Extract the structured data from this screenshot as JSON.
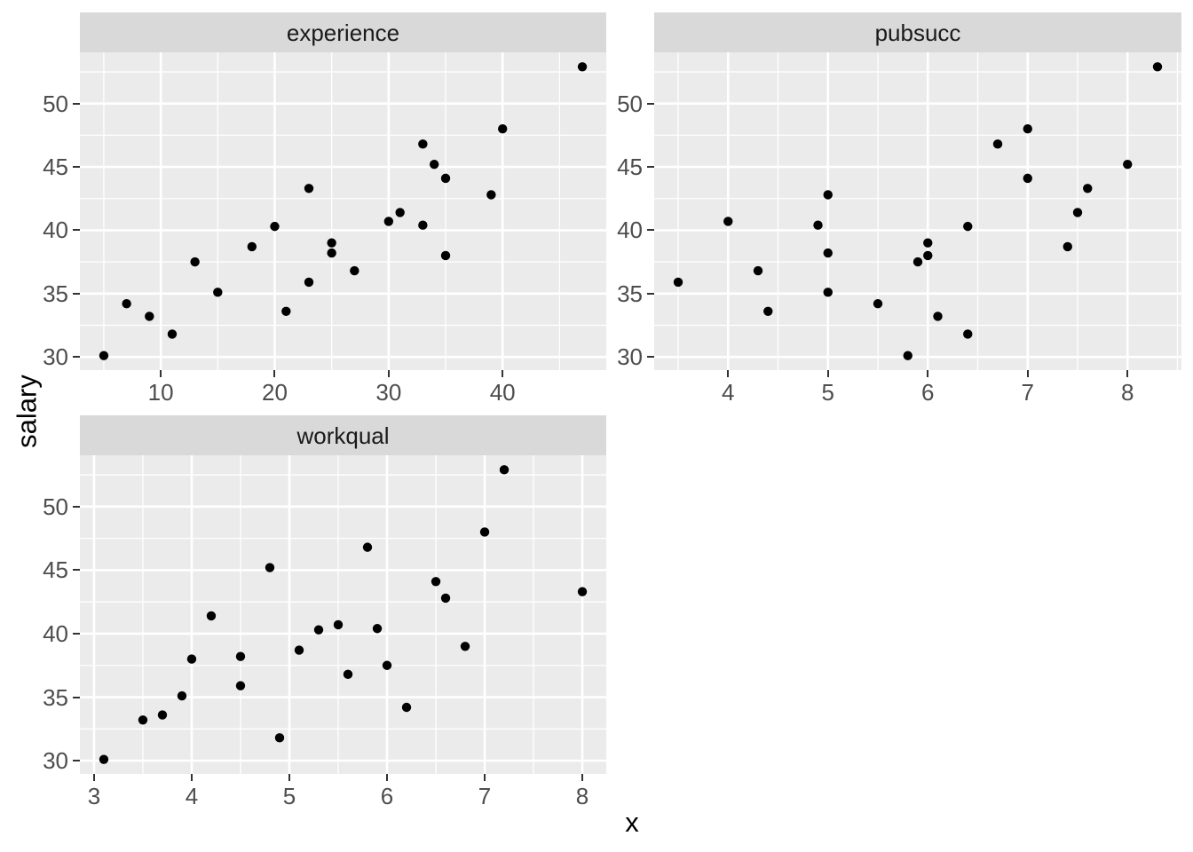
{
  "figure": {
    "x_axis_title": "x",
    "y_axis_title": "salary",
    "background": "#FFFFFF",
    "panel_bg": "#EBEBEB",
    "strip_bg": "#D9D9D9",
    "grid_color": "#FFFFFF",
    "tick_mark_color": "#333333",
    "tick_label_color": "#4D4D4D",
    "strip_text_color": "#1A1A1A",
    "axis_title_color": "#000000",
    "point_color": "#000000",
    "legend": "none"
  },
  "chart_data": [
    {
      "type": "scatter",
      "facet": "experience",
      "xlabel": "x",
      "ylabel": "salary",
      "x": [
        5,
        7,
        9,
        11,
        13,
        15,
        18,
        20,
        21,
        23,
        23,
        25,
        25,
        27,
        30,
        31,
        33,
        33,
        34,
        35,
        35,
        39,
        40,
        47
      ],
      "y": [
        30.1,
        34.2,
        33.2,
        31.8,
        37.5,
        35.1,
        38.7,
        40.3,
        33.6,
        35.9,
        43.3,
        39.0,
        38.2,
        36.8,
        40.7,
        41.4,
        46.8,
        40.4,
        45.2,
        44.1,
        38.0,
        42.8,
        48.0,
        52.9
      ],
      "xlim": [
        2.9,
        49.1
      ],
      "ylim": [
        28.96,
        54.04
      ],
      "x_breaks": [
        10,
        20,
        30,
        40
      ],
      "x_minor": [
        5,
        15,
        25,
        35,
        45
      ],
      "y_breaks": [
        30,
        35,
        40,
        45,
        50
      ],
      "y_minor": [
        32.5,
        37.5,
        42.5,
        47.5,
        52.5
      ],
      "grid": true
    },
    {
      "type": "scatter",
      "facet": "pubsucc",
      "xlabel": "x",
      "ylabel": "salary",
      "x": [
        3.5,
        4.0,
        4.3,
        4.4,
        4.9,
        5.0,
        5.0,
        5.0,
        5.5,
        5.8,
        5.9,
        6.0,
        6.0,
        6.1,
        6.4,
        6.4,
        6.7,
        7.0,
        7.0,
        7.4,
        7.5,
        7.6,
        8.0,
        8.3
      ],
      "y": [
        35.9,
        40.7,
        36.8,
        33.6,
        40.4,
        42.8,
        38.2,
        35.1,
        34.2,
        30.1,
        37.5,
        39.0,
        38.0,
        33.2,
        40.3,
        31.8,
        46.8,
        48.0,
        44.1,
        38.7,
        41.4,
        43.3,
        45.2,
        52.9
      ],
      "xlim": [
        3.26,
        8.54
      ],
      "ylim": [
        28.96,
        54.04
      ],
      "x_breaks": [
        4,
        5,
        6,
        7,
        8
      ],
      "x_minor": [
        3.5,
        4.5,
        5.5,
        6.5,
        7.5,
        8.5
      ],
      "y_breaks": [
        30,
        35,
        40,
        45,
        50
      ],
      "y_minor": [
        32.5,
        37.5,
        42.5,
        47.5,
        52.5
      ],
      "grid": true
    },
    {
      "type": "scatter",
      "facet": "workqual",
      "xlabel": "x",
      "ylabel": "salary",
      "x": [
        3.1,
        3.5,
        3.7,
        3.9,
        4.0,
        4.2,
        4.5,
        4.5,
        4.8,
        4.9,
        5.1,
        5.3,
        5.5,
        5.6,
        5.8,
        5.9,
        6.0,
        6.2,
        6.5,
        6.6,
        6.8,
        7.0,
        7.2,
        8.0
      ],
      "y": [
        30.1,
        33.2,
        33.6,
        35.1,
        38.0,
        41.4,
        38.2,
        35.9,
        45.2,
        31.8,
        38.7,
        40.3,
        40.7,
        36.8,
        46.8,
        40.4,
        37.5,
        34.2,
        44.1,
        42.8,
        39.0,
        48.0,
        52.9,
        43.3
      ],
      "xlim": [
        2.855,
        8.245
      ],
      "ylim": [
        28.96,
        54.04
      ],
      "x_breaks": [
        3,
        4,
        5,
        6,
        7,
        8
      ],
      "x_minor": [
        3.5,
        4.5,
        5.5,
        6.5,
        7.5
      ],
      "y_breaks": [
        30,
        35,
        40,
        45,
        50
      ],
      "y_minor": [
        32.5,
        37.5,
        42.5,
        47.5,
        52.5
      ],
      "grid": true
    }
  ]
}
